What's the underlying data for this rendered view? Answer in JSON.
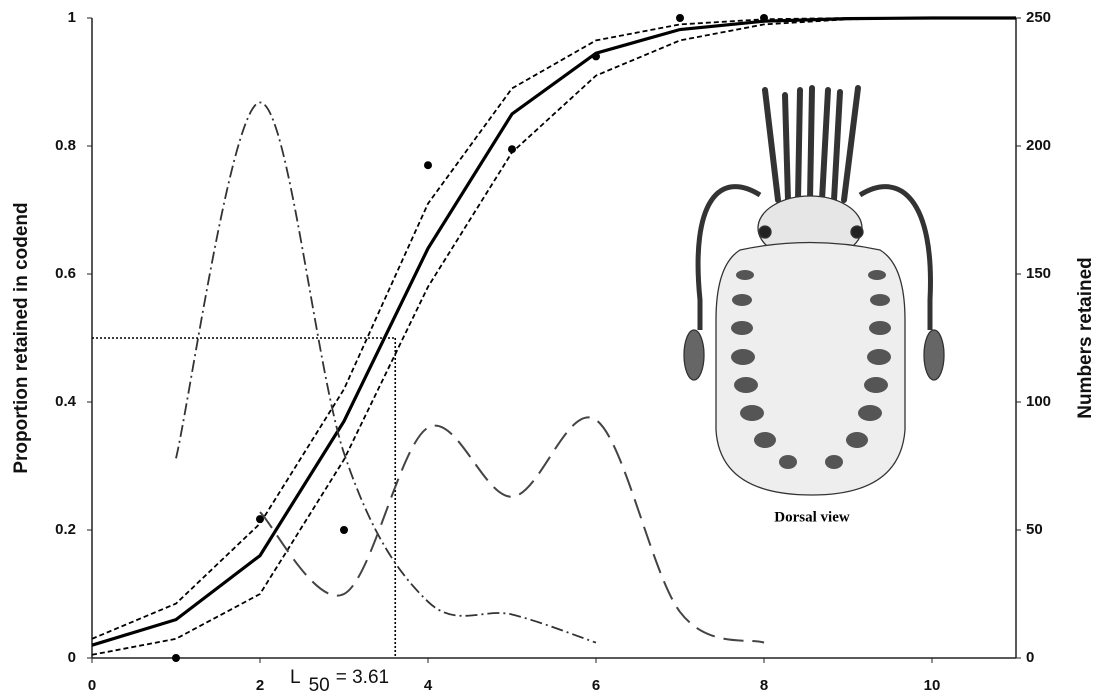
{
  "chart_data": {
    "type": "line",
    "xlim": [
      0,
      11
    ],
    "xticks": [
      0,
      2,
      4,
      6,
      8,
      10
    ],
    "ylim": [
      0,
      1
    ],
    "yticks": [
      0,
      0.2,
      0.4,
      0.6,
      0.8,
      1
    ],
    "y2lim": [
      0,
      250
    ],
    "y2ticks": [
      0,
      50,
      100,
      150,
      200,
      250
    ],
    "ylabel": "Proportion retained in codend",
    "y2label": "Numbers retained",
    "series": [
      {
        "style": "solid",
        "color": "#000000",
        "x": [
          0,
          1,
          2,
          3,
          4,
          5,
          6,
          7,
          8,
          9,
          10,
          11
        ],
        "values": [
          0.02,
          0.06,
          0.16,
          0.37,
          0.64,
          0.85,
          0.945,
          0.982,
          0.995,
          0.999,
          1,
          1
        ]
      },
      {
        "style": "dashed",
        "color": "#000000",
        "x": [
          0,
          1,
          2,
          3,
          4,
          5,
          6,
          7,
          8,
          9,
          10,
          11
        ],
        "values": [
          0.03,
          0.085,
          0.21,
          0.42,
          0.71,
          0.89,
          0.965,
          0.99,
          0.998,
          1,
          1,
          1
        ]
      },
      {
        "style": "dashed",
        "color": "#000000",
        "x": [
          0,
          1,
          2,
          3,
          4,
          5,
          6,
          7,
          8,
          9,
          10,
          11
        ],
        "values": [
          0.005,
          0.03,
          0.1,
          0.31,
          0.58,
          0.79,
          0.91,
          0.965,
          0.99,
          0.998,
          1,
          1
        ]
      },
      {
        "style": "dots",
        "color": "#000000",
        "x": [
          1,
          2,
          3,
          4,
          5,
          6,
          7,
          8
        ],
        "values": [
          0,
          0.217,
          0.2,
          0.77,
          0.795,
          0.94,
          1,
          1
        ]
      },
      {
        "style": "dashdot",
        "color": "#333333",
        "axis": "y2",
        "smooth": true,
        "x": [
          1,
          2,
          3,
          4,
          5,
          6
        ],
        "values": [
          78,
          217,
          80,
          22,
          17,
          6
        ]
      },
      {
        "style": "longdash",
        "color": "#444444",
        "axis": "y2",
        "smooth": true,
        "x": [
          2,
          3,
          4,
          5,
          6,
          7,
          8
        ],
        "values": [
          57,
          25,
          90,
          63,
          93,
          18,
          6
        ]
      }
    ],
    "reference": {
      "x": 3.61,
      "y": 0.5
    },
    "annotation": {
      "main": "L",
      "subscript": "50",
      "rest": "= 3.61"
    },
    "illustration_caption": "Dorsal view"
  }
}
